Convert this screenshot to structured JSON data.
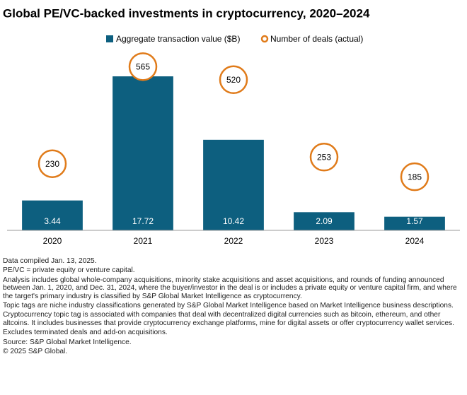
{
  "chart_data": {
    "type": "bar",
    "title": "Global PE/VC-backed investments in cryptocurrency, 2020–2024",
    "categories": [
      "2020",
      "2021",
      "2022",
      "2023",
      "2024"
    ],
    "series": [
      {
        "name": "Aggregate transaction value ($B)",
        "color": "#0d5f7f",
        "values": [
          3.44,
          17.72,
          10.42,
          2.09,
          1.57
        ],
        "value_labels": [
          "3.44",
          "17.72",
          "10.42",
          "2.09",
          "1.57"
        ]
      },
      {
        "name": "Number of deals (actual)",
        "color": "#e07b1a",
        "axis": "y2",
        "type": "scatter",
        "values": [
          230,
          565,
          520,
          253,
          185
        ]
      }
    ],
    "ylim": [
      0,
      20
    ],
    "y2lim": [
      0,
      600
    ]
  },
  "notes": [
    "Data compiled Jan. 13, 2025.",
    "PE/VC = private equity or venture capital.",
    "Analysis includes global whole-company acquisitions, minority stake acquisitions and asset acquisitions, and rounds of funding announced between Jan. 1, 2020, and Dec. 31, 2024, where the buyer/investor in the deal is or includes a private equity or venture capital firm, and where the target's primary industry is classified by S&P Global Market Intelligence as cryptocurrency.",
    "Topic tags are niche industry classifications generated by S&P Global Market Intelligence based on Market Intelligence business descriptions.",
    "Cryptocurrency topic tag is associated with companies that deal with decentralized digital currencies such as bitcoin, ethereum, and other altcoins. It includes businesses that provide cryptocurrency exchange platforms, mine for digital assets or offer cryptocurrency wallet services.",
    "Excludes terminated deals and add-on acquisitions.",
    "Source: S&P Global Market Intelligence.",
    "© 2025 S&P Global."
  ]
}
